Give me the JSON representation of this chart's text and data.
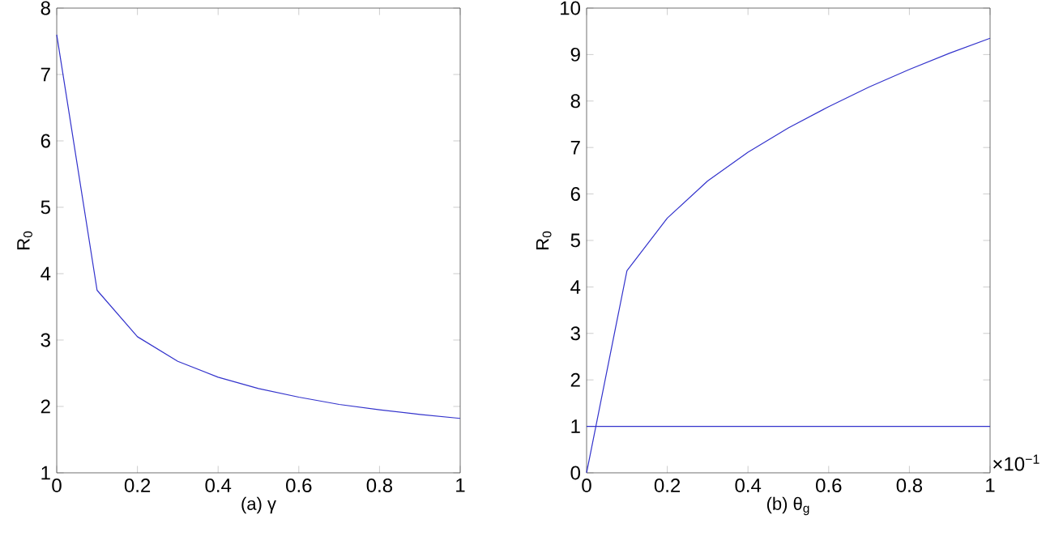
{
  "chart_data": [
    {
      "type": "line",
      "xlabel": "(a)    γ",
      "ylabel": "R$_{0}$",
      "x": [
        0,
        0.1,
        0.2,
        0.3,
        0.4,
        0.5,
        0.6,
        0.7,
        0.8,
        0.9,
        1
      ],
      "series": [
        {
          "color": "#3333cc",
          "values": [
            7.6,
            3.75,
            3.05,
            2.68,
            2.44,
            2.27,
            2.14,
            2.03,
            1.95,
            1.88,
            1.82
          ]
        }
      ],
      "xlim": [
        0,
        1
      ],
      "ylim": [
        1,
        8
      ],
      "xticks": [
        0,
        0.2,
        0.4,
        0.6,
        0.8,
        1
      ],
      "yticks": [
        1,
        2,
        3,
        4,
        5,
        6,
        7,
        8
      ]
    },
    {
      "type": "line",
      "xlabel": "(b)    θ$_{g}$",
      "ylabel": "R$_{0}$",
      "x": [
        0,
        0.1,
        0.2,
        0.3,
        0.4,
        0.5,
        0.6,
        0.7,
        0.8,
        0.9,
        1
      ],
      "series": [
        {
          "color": "#3333cc",
          "values": [
            0,
            4.35,
            5.48,
            6.28,
            6.9,
            7.42,
            7.88,
            8.3,
            8.68,
            9.03,
            9.35
          ]
        }
      ],
      "ref_lines": [
        {
          "axis": "y",
          "value": 1,
          "color": "#3333cc"
        }
      ],
      "annotations": [
        "×10$^{−1}$"
      ],
      "xlim": [
        0,
        1
      ],
      "ylim": [
        0,
        10
      ],
      "xticks": [
        0,
        0.2,
        0.4,
        0.6,
        0.8,
        1
      ],
      "yticks": [
        0,
        1,
        2,
        3,
        4,
        5,
        6,
        7,
        8,
        9,
        10
      ]
    }
  ]
}
